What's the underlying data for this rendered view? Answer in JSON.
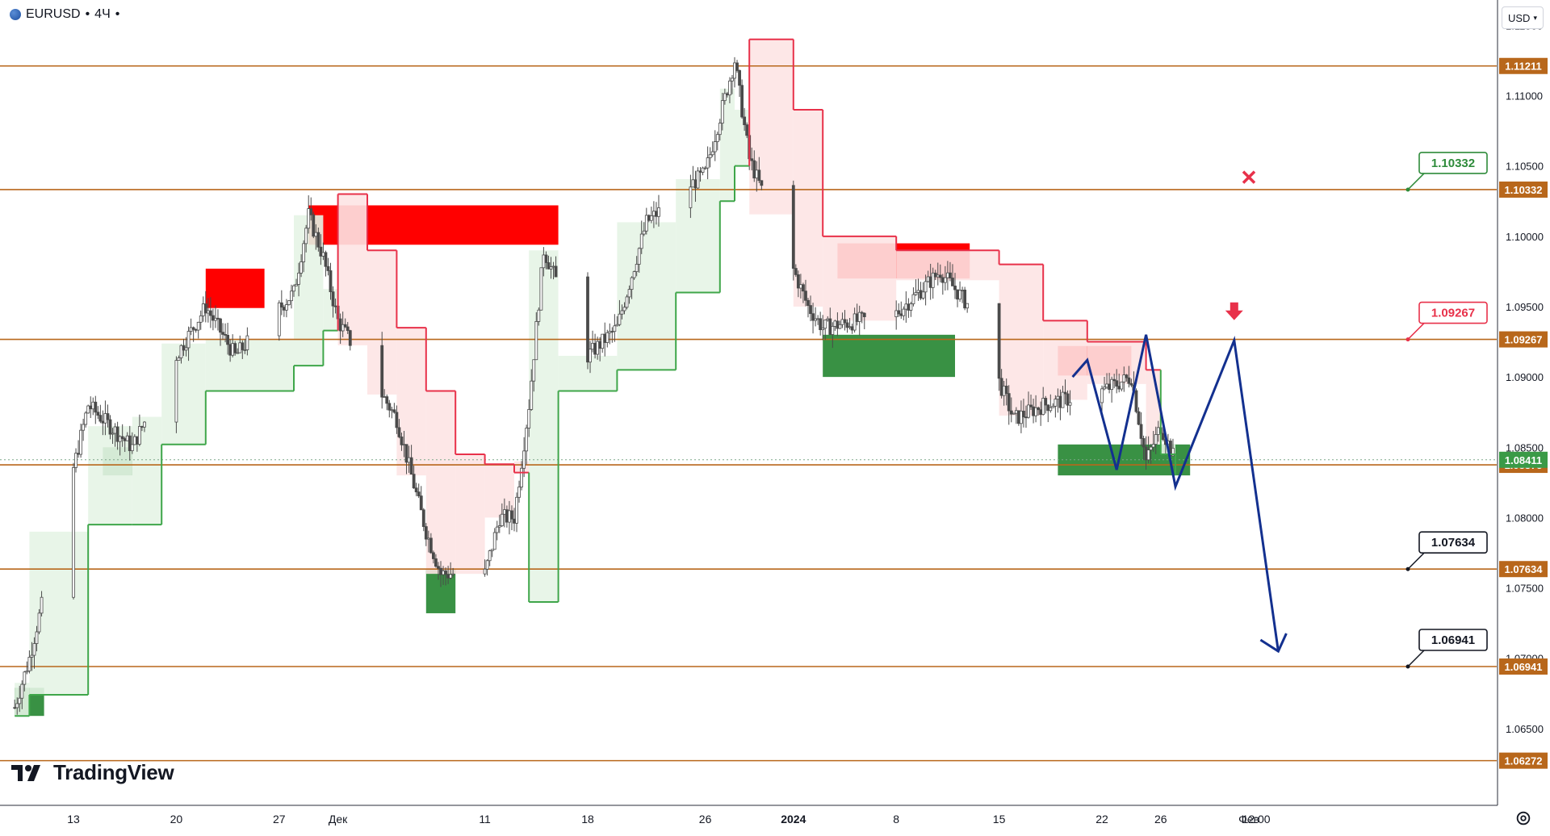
{
  "header": {
    "symbol": "EURUSD",
    "interval": "4Ч",
    "currency": "USD"
  },
  "brand": {
    "name": "TradingView"
  },
  "colors": {
    "level_line": "#b8671b",
    "bull_zone": "#2e8b3a",
    "bear_zone": "#ff0000",
    "stop_up": "#e8314a",
    "stop_down": "#3fa64a",
    "forecast": "#13308f",
    "candle": "#4a4a4a"
  },
  "chart_data": {
    "type": "candlestick",
    "instrument": "EURUSD",
    "timeframe": "4H",
    "ylim": [
      1.0596,
      1.1168
    ],
    "price_axis_ticks": [
      "1.11500",
      "1.11000",
      "1.10500",
      "1.10000",
      "1.09500",
      "1.09000",
      "1.08500",
      "1.08000",
      "1.07500",
      "1.07000",
      "1.06500"
    ],
    "date_ticks": [
      {
        "label": "13",
        "date": "2023-11-13"
      },
      {
        "label": "20",
        "date": "2023-11-20"
      },
      {
        "label": "27",
        "date": "2023-11-27"
      },
      {
        "label": "Дек",
        "date": "2023-12-01"
      },
      {
        "label": "11",
        "date": "2023-12-11"
      },
      {
        "label": "18",
        "date": "2023-12-18"
      },
      {
        "label": "26",
        "date": "2023-12-26"
      },
      {
        "label": "2024",
        "date": "2024-01-01"
      },
      {
        "label": "8",
        "date": "2024-01-08"
      },
      {
        "label": "15",
        "date": "2024-01-15"
      },
      {
        "label": "22",
        "date": "2024-01-22"
      },
      {
        "label": "26",
        "date": "2024-01-26"
      },
      {
        "label": "Фев",
        "date": "2024-02-01"
      },
      {
        "label": "12:00",
        "date": "2024-02-01 12:00"
      }
    ],
    "horizontal_levels": [
      {
        "price": 1.11211,
        "label": "1.11211"
      },
      {
        "price": 1.10332,
        "label": "1.10332"
      },
      {
        "price": 1.09267,
        "label": "1.09267"
      },
      {
        "price": 1.08375,
        "label": "1.08375"
      },
      {
        "price": 1.07634,
        "label": "1.07634"
      },
      {
        "price": 1.06941,
        "label": "1.06941"
      },
      {
        "price": 1.06272,
        "label": "1.06272"
      }
    ],
    "current_price": {
      "price": 1.08411,
      "label": "1.08411"
    },
    "callouts": [
      {
        "label": "1.10332",
        "price": 1.10332,
        "color": "#2e8b3a",
        "role": "stop"
      },
      {
        "label": "1.09267",
        "price": 1.09267,
        "color": "#e8314a",
        "role": "entry"
      },
      {
        "label": "1.07634",
        "price": 1.07634,
        "color": "#131722",
        "role": "target"
      },
      {
        "label": "1.06941",
        "price": 1.06941,
        "color": "#131722",
        "role": "target"
      }
    ],
    "demand_zones": [
      {
        "from": "2023-11-09",
        "to": "2023-11-11",
        "top": 1.0679,
        "bottom": 1.0659
      },
      {
        "from": "2023-11-15",
        "to": "2023-11-17",
        "top": 1.085,
        "bottom": 1.083
      },
      {
        "from": "2023-12-07",
        "to": "2023-12-09",
        "top": 1.0763,
        "bottom": 1.0732
      },
      {
        "from": "2024-01-03",
        "to": "2024-01-12",
        "top": 1.093,
        "bottom": 1.09
      },
      {
        "from": "2024-01-19",
        "to": "2024-01-28",
        "top": 1.0852,
        "bottom": 1.083
      }
    ],
    "supply_zones": [
      {
        "from": "2023-11-22",
        "to": "2023-11-26",
        "top": 1.0977,
        "bottom": 1.0949
      },
      {
        "from": "2023-11-29",
        "to": "2023-12-16",
        "top": 1.1022,
        "bottom": 1.0994
      },
      {
        "from": "2024-01-04",
        "to": "2024-01-13",
        "top": 1.0995,
        "bottom": 1.097
      },
      {
        "from": "2024-01-19",
        "to": "2024-01-24",
        "top": 1.0922,
        "bottom": 1.0901
      }
    ],
    "trailing_stop": [
      {
        "date": "2023-11-09",
        "price": 1.0659,
        "side": "long"
      },
      {
        "date": "2023-11-10",
        "price": 1.0674,
        "side": "long"
      },
      {
        "date": "2023-11-14",
        "price": 1.0795,
        "side": "long"
      },
      {
        "date": "2023-11-17",
        "price": 1.0795,
        "side": "long"
      },
      {
        "date": "2023-11-19",
        "price": 1.0852,
        "side": "long"
      },
      {
        "date": "2023-11-22",
        "price": 1.089,
        "side": "long"
      },
      {
        "date": "2023-11-28",
        "price": 1.0908,
        "side": "long"
      },
      {
        "date": "2023-11-30",
        "price": 1.0933,
        "side": "long"
      },
      {
        "date": "2023-12-01",
        "price": 1.103,
        "side": "short"
      },
      {
        "date": "2023-12-03",
        "price": 1.099,
        "side": "short"
      },
      {
        "date": "2023-12-05",
        "price": 1.0935,
        "side": "short"
      },
      {
        "date": "2023-12-07",
        "price": 1.089,
        "side": "short"
      },
      {
        "date": "2023-12-09",
        "price": 1.0845,
        "side": "short"
      },
      {
        "date": "2023-12-11",
        "price": 1.0838,
        "side": "short"
      },
      {
        "date": "2023-12-13",
        "price": 1.0832,
        "side": "short"
      },
      {
        "date": "2023-12-14",
        "price": 1.074,
        "side": "long"
      },
      {
        "date": "2023-12-16",
        "price": 1.089,
        "side": "long"
      },
      {
        "date": "2023-12-20",
        "price": 1.0905,
        "side": "long"
      },
      {
        "date": "2023-12-24",
        "price": 1.096,
        "side": "long"
      },
      {
        "date": "2023-12-27",
        "price": 1.1025,
        "side": "long"
      },
      {
        "date": "2023-12-28",
        "price": 1.105,
        "side": "long"
      },
      {
        "date": "2023-12-29",
        "price": 1.114,
        "side": "short"
      },
      {
        "date": "2024-01-01",
        "price": 1.109,
        "side": "short"
      },
      {
        "date": "2024-01-03",
        "price": 1.1,
        "side": "short"
      },
      {
        "date": "2024-01-08",
        "price": 1.099,
        "side": "short"
      },
      {
        "date": "2024-01-15",
        "price": 1.098,
        "side": "short"
      },
      {
        "date": "2024-01-18",
        "price": 1.094,
        "side": "short"
      },
      {
        "date": "2024-01-21",
        "price": 1.0925,
        "side": "short"
      },
      {
        "date": "2024-01-25",
        "price": 1.0905,
        "side": "short"
      },
      {
        "date": "2024-01-26",
        "price": 1.0845,
        "side": "long"
      },
      {
        "date": "2024-01-27",
        "price": 1.083,
        "side": "long"
      }
    ],
    "price_path": [
      {
        "date": "2023-11-09",
        "price": 1.0665
      },
      {
        "date": "2023-11-10",
        "price": 1.07
      },
      {
        "date": "2023-11-14",
        "price": 1.088
      },
      {
        "date": "2023-11-17",
        "price": 1.085
      },
      {
        "date": "2023-11-20",
        "price": 1.0915
      },
      {
        "date": "2023-11-22",
        "price": 1.095
      },
      {
        "date": "2023-11-24",
        "price": 1.0915
      },
      {
        "date": "2023-11-28",
        "price": 1.096
      },
      {
        "date": "2023-11-29",
        "price": 1.1015
      },
      {
        "date": "2023-11-30",
        "price": 1.0985
      },
      {
        "date": "2023-12-01",
        "price": 1.094
      },
      {
        "date": "2023-12-05",
        "price": 1.087
      },
      {
        "date": "2023-12-07",
        "price": 1.079
      },
      {
        "date": "2023-12-08",
        "price": 1.076
      },
      {
        "date": "2023-12-11",
        "price": 1.076
      },
      {
        "date": "2023-12-12",
        "price": 1.08
      },
      {
        "date": "2023-12-13",
        "price": 1.08
      },
      {
        "date": "2023-12-14",
        "price": 1.088
      },
      {
        "date": "2023-12-15",
        "price": 1.099
      },
      {
        "date": "2023-12-18",
        "price": 1.0915
      },
      {
        "date": "2023-12-20",
        "price": 1.0935
      },
      {
        "date": "2023-12-22",
        "price": 1.101
      },
      {
        "date": "2023-12-26",
        "price": 1.1045
      },
      {
        "date": "2023-12-28",
        "price": 1.1125
      },
      {
        "date": "2023-12-29",
        "price": 1.1055
      },
      {
        "date": "2024-01-02",
        "price": 1.095
      },
      {
        "date": "2024-01-03",
        "price": 1.0935
      },
      {
        "date": "2024-01-08",
        "price": 1.0945
      },
      {
        "date": "2024-01-11",
        "price": 1.0975
      },
      {
        "date": "2024-01-13",
        "price": 1.095
      },
      {
        "date": "2024-01-16",
        "price": 1.087
      },
      {
        "date": "2024-01-18",
        "price": 1.088
      },
      {
        "date": "2024-01-22",
        "price": 1.089
      },
      {
        "date": "2024-01-24",
        "price": 1.09
      },
      {
        "date": "2024-01-25",
        "price": 1.084
      },
      {
        "date": "2024-01-26",
        "price": 1.0865
      },
      {
        "date": "2024-01-27",
        "price": 1.084
      }
    ],
    "forecast_path": [
      {
        "date": "2024-01-20",
        "price": 1.09
      },
      {
        "date": "2024-01-21",
        "price": 1.0912
      },
      {
        "date": "2024-01-23",
        "price": 1.0834
      },
      {
        "date": "2024-01-25",
        "price": 1.093
      },
      {
        "date": "2024-01-27",
        "price": 1.0822
      },
      {
        "date": "2024-01-31",
        "price": 1.0926
      },
      {
        "date": "2024-02-03",
        "price": 1.0705
      }
    ],
    "markers": [
      {
        "type": "cross",
        "date": "2024-02-01",
        "price": 1.1042,
        "color": "#e8314a"
      },
      {
        "type": "arrow-down",
        "date": "2024-01-31",
        "price": 1.0945,
        "color": "#e8314a"
      }
    ]
  }
}
